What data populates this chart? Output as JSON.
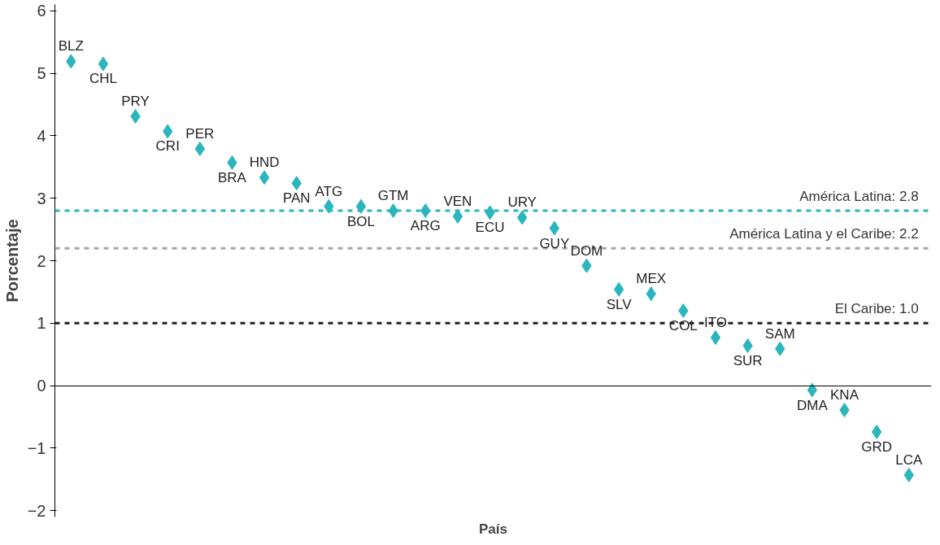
{
  "chart_data": {
    "type": "scatter",
    "xlabel": "País",
    "ylabel": "Porcentaje",
    "categories": [
      "BLZ",
      "CHL",
      "PRY",
      "CRI",
      "PER",
      "BRA",
      "HND",
      "PAN",
      "ATG",
      "BOL",
      "GTM",
      "ARG",
      "VEN",
      "ECU",
      "URY",
      "GUY",
      "DOM",
      "SLV",
      "MEX",
      "COL",
      "ITO",
      "SUR",
      "SAM",
      "DMA",
      "KNA",
      "GRD",
      "LCA"
    ],
    "series": [
      {
        "color": "#2bb5bd",
        "values": [
          5.19,
          5.15,
          4.31,
          4.07,
          3.79,
          3.57,
          3.33,
          3.24,
          2.87,
          2.87,
          2.8,
          2.8,
          2.71,
          2.77,
          2.69,
          2.52,
          1.92,
          1.54,
          1.47,
          1.2,
          0.77,
          0.64,
          0.59,
          -0.07,
          -0.39,
          -0.74,
          -1.43
        ]
      }
    ],
    "ylim": [
      -2.1,
      6.1
    ],
    "yticks": [
      -2,
      -1,
      0,
      1,
      2,
      3,
      4,
      5,
      6
    ],
    "ref_lines": [
      {
        "axis": "y",
        "value": 2.8,
        "label": "América Latina: 2.8",
        "color": "#2bb5bd",
        "line_style": "dashed"
      },
      {
        "axis": "y",
        "value": 2.2,
        "label": "América Latina y el Caribe: 2.2",
        "color": "#a6a6a6",
        "line_style": "dashed"
      },
      {
        "axis": "y",
        "value": 1.0,
        "label": "El Caribe: 1.0",
        "color": "#222222",
        "line_style": "dashed"
      }
    ],
    "marker": "diamond",
    "tick_labels": "y"
  }
}
